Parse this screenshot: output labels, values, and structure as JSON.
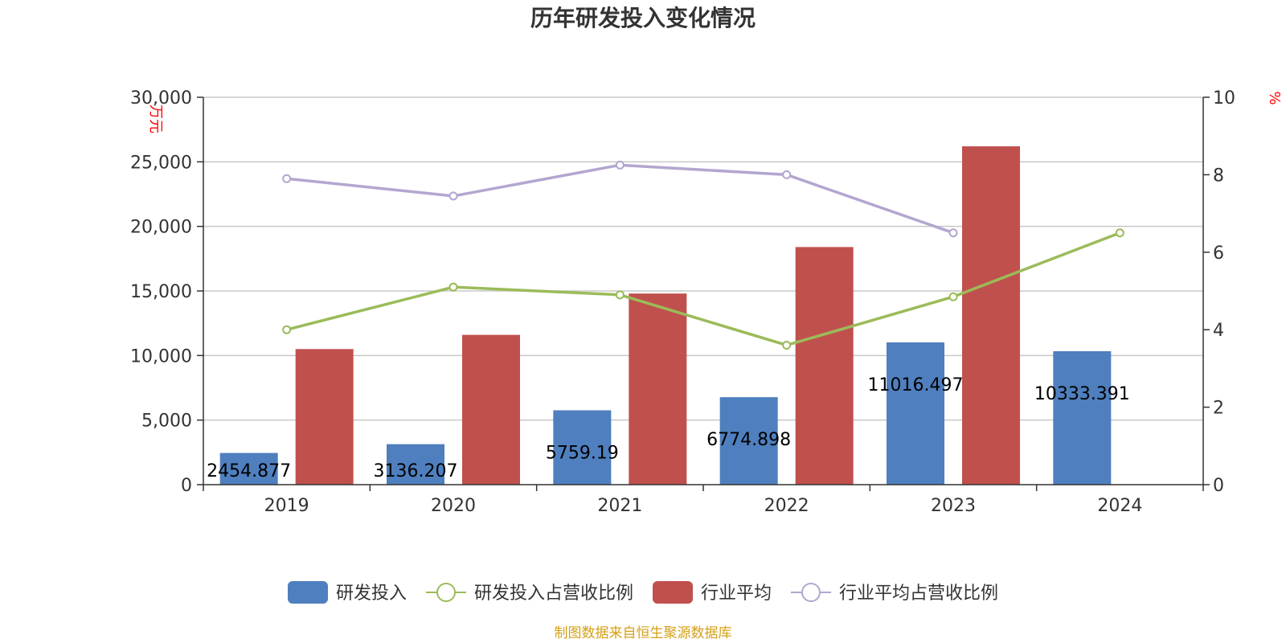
{
  "chart_data": {
    "type": "bar",
    "title": "历年研发投入变化情况",
    "categories": [
      "2019",
      "2020",
      "2021",
      "2022",
      "2023",
      "2024"
    ],
    "y_left": {
      "unit": "万元",
      "min": 0,
      "max": 30000,
      "ticks": [
        "0",
        "5,000",
        "10,000",
        "15,000",
        "20,000",
        "25,000",
        "30,000"
      ]
    },
    "y_right": {
      "unit": "%",
      "min": 0,
      "max": 10,
      "ticks": [
        "0",
        "2",
        "4",
        "6",
        "8",
        "10"
      ]
    },
    "series": [
      {
        "name": "研发投入",
        "kind": "bar",
        "axis": "left",
        "color": "#4f7fbe",
        "values": [
          2454.877,
          3136.207,
          5759.19,
          6774.898,
          11016.497,
          10333.391
        ],
        "labels": [
          "2454.877",
          "3136.207",
          "5759.19",
          "6774.898",
          "11016.497",
          "10333.391"
        ]
      },
      {
        "name": "研发投入占营收比例",
        "kind": "line",
        "axis": "right",
        "color": "#9bbb59",
        "values": [
          4.0,
          5.1,
          4.9,
          3.6,
          4.85,
          6.5
        ]
      },
      {
        "name": "行业平均",
        "kind": "bar",
        "axis": "left",
        "color": "#c0504d",
        "values": [
          10500,
          11600,
          14800,
          18400,
          26200,
          null
        ]
      },
      {
        "name": "行业平均占营收比例",
        "kind": "line",
        "axis": "right",
        "color": "#b3a6cf",
        "values": [
          7.9,
          7.45,
          8.25,
          8.0,
          6.5,
          null
        ]
      }
    ],
    "grid": true,
    "legend_position": "bottom",
    "source": "制图数据来自恒生聚源数据库"
  }
}
